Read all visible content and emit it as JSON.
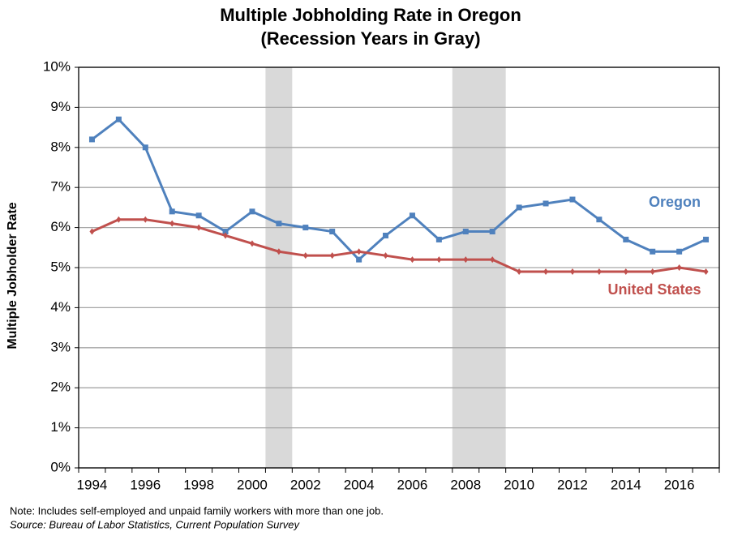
{
  "chart_data": {
    "type": "line",
    "title": "Multiple Jobholding Rate in Oregon",
    "subtitle": "(Recession Years in Gray)",
    "y_label": "Multiple Jobholder Rate",
    "note": "Note: Includes self-employed and unpaid family workers with more than one job.",
    "source": "Source: Bureau of Labor Statistics, Current Population Survey",
    "x": [
      1994,
      1995,
      1996,
      1997,
      1998,
      1999,
      2000,
      2001,
      2002,
      2003,
      2004,
      2005,
      2006,
      2007,
      2008,
      2009,
      2010,
      2011,
      2012,
      2013,
      2014,
      2015,
      2016,
      2017
    ],
    "xlim": [
      1993.5,
      2017.5
    ],
    "xticks": [
      1994,
      1996,
      1998,
      2000,
      2002,
      2004,
      2006,
      2008,
      2010,
      2012,
      2014,
      2016
    ],
    "ylim": [
      0,
      10
    ],
    "yticks": [
      {
        "value": 0,
        "label": "0%"
      },
      {
        "value": 1,
        "label": "1%"
      },
      {
        "value": 2,
        "label": "2%"
      },
      {
        "value": 3,
        "label": "3%"
      },
      {
        "value": 4,
        "label": "4%"
      },
      {
        "value": 5,
        "label": "5%"
      },
      {
        "value": 6,
        "label": "6%"
      },
      {
        "value": 7,
        "label": "7%"
      },
      {
        "value": 8,
        "label": "8%"
      },
      {
        "value": 9,
        "label": "9%"
      },
      {
        "value": 10,
        "label": "10%"
      }
    ],
    "grid": true,
    "recession_color": "#d9d9d9",
    "recessions": [
      [
        2000.5,
        2001.5
      ],
      [
        2007.5,
        2009.5
      ]
    ],
    "series": [
      {
        "name": "Oregon",
        "color": "#4f81bd",
        "marker": "square",
        "values": [
          8.2,
          8.7,
          8.0,
          6.4,
          6.3,
          5.9,
          6.4,
          6.1,
          6.0,
          5.9,
          5.2,
          5.8,
          6.3,
          5.7,
          5.9,
          5.9,
          6.5,
          6.6,
          6.7,
          6.2,
          5.7,
          5.4,
          5.4,
          5.7
        ]
      },
      {
        "name": "United States",
        "color": "#c0504d",
        "marker": "diamond",
        "values": [
          5.9,
          6.2,
          6.2,
          6.1,
          6.0,
          5.8,
          5.6,
          5.4,
          5.3,
          5.3,
          5.4,
          5.3,
          5.2,
          5.2,
          5.2,
          5.2,
          4.9,
          4.9,
          4.9,
          4.9,
          4.9,
          4.9,
          5.0,
          4.9
        ]
      }
    ]
  }
}
